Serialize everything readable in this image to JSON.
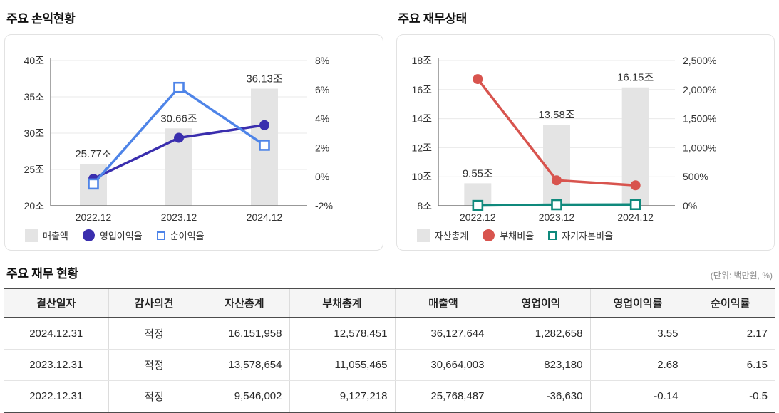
{
  "sections": {
    "profit_chart_title": "주요 손익현황",
    "financial_chart_title": "주요 재무상태",
    "table_title": "주요 재무 현황",
    "unit_note": "(단위: 백만원, %)"
  },
  "chart_data": [
    {
      "type": "bar+line combo",
      "title": "주요 손익현황",
      "categories": [
        "2022.12",
        "2023.12",
        "2024.12"
      ],
      "bar_series": {
        "name": "매출액",
        "values": [
          25.77,
          30.66,
          36.13
        ],
        "labels": [
          "25.77조",
          "30.66조",
          "36.13조"
        ],
        "color": "#e4e4e4"
      },
      "left_axis": {
        "min": 20,
        "max": 40,
        "step": 5,
        "suffix": "조"
      },
      "right_axis": {
        "min": -2,
        "max": 8,
        "step": 2,
        "suffix": "%"
      },
      "line_series": [
        {
          "name": "영업이익율",
          "values": [
            -0.14,
            2.68,
            3.55
          ],
          "color": "#3a2eae",
          "marker": "circle"
        },
        {
          "name": "순이익율",
          "values": [
            -0.5,
            6.15,
            2.17
          ],
          "color": "#4e84e8",
          "marker": "square"
        }
      ],
      "legend_position": "bottom-left",
      "grid": true
    },
    {
      "type": "bar+line combo",
      "title": "주요 재무상태",
      "categories": [
        "2022.12",
        "2023.12",
        "2024.12"
      ],
      "bar_series": {
        "name": "자산총계",
        "values": [
          9.55,
          13.58,
          16.15
        ],
        "labels": [
          "9.55조",
          "13.58조",
          "16.15조"
        ],
        "color": "#e4e4e4"
      },
      "left_axis": {
        "min": 8,
        "max": 18,
        "step": 2,
        "suffix": "조"
      },
      "right_axis": {
        "min": 0,
        "max": 2500,
        "step": 500,
        "suffix": "%"
      },
      "line_series": [
        {
          "name": "부채비율",
          "values": [
            2180,
            438,
            352
          ],
          "color": "#d8544e",
          "marker": "circle"
        },
        {
          "name": "자기자본비율",
          "values": [
            4.4,
            18.6,
            22.1
          ],
          "color": "#0f897c",
          "marker": "square"
        }
      ],
      "legend_position": "bottom-left",
      "grid": true
    }
  ],
  "table": {
    "columns": [
      "결산일자",
      "감사의견",
      "자산총계",
      "부채총계",
      "매출액",
      "영업이익",
      "영업이익률",
      "순이익률"
    ],
    "rows": [
      [
        "2024.12.31",
        "적정",
        "16,151,958",
        "12,578,451",
        "36,127,644",
        "1,282,658",
        "3.55",
        "2.17"
      ],
      [
        "2023.12.31",
        "적정",
        "13,578,654",
        "11,055,465",
        "30,664,003",
        "823,180",
        "2.68",
        "6.15"
      ],
      [
        "2022.12.31",
        "적정",
        "9,546,002",
        "9,127,218",
        "25,768,487",
        "-36,630",
        "-0.14",
        "-0.5"
      ]
    ]
  }
}
